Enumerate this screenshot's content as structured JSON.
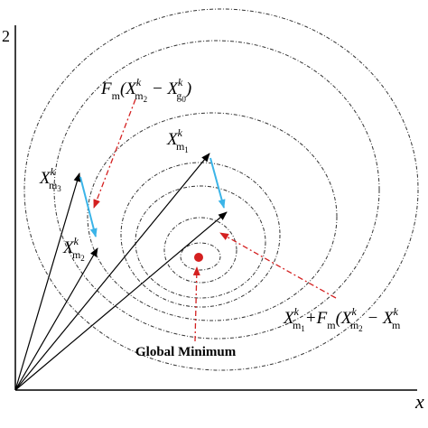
{
  "axes": {
    "y_label": "2",
    "x_label": "x"
  },
  "labels": [
    {
      "segments": [
        {
          "text": "F",
          "role": "base"
        },
        {
          "text": "m",
          "role": "sub"
        },
        {
          "text": "(X",
          "role": "base"
        },
        {
          "text": "k",
          "role": "sup"
        },
        {
          "text": "m",
          "role": "sub"
        },
        {
          "text": "2",
          "role": "subsub"
        },
        {
          "text": " − X",
          "role": "base"
        },
        {
          "text": "k",
          "role": "sup"
        },
        {
          "text": "g",
          "role": "sub"
        },
        {
          "text": "0",
          "role": "subsub"
        },
        {
          "text": ")",
          "role": "base"
        }
      ]
    },
    {
      "segments": [
        {
          "text": "X",
          "role": "base"
        },
        {
          "text": "k",
          "role": "sup"
        },
        {
          "text": "m",
          "role": "sub"
        },
        {
          "text": "1",
          "role": "subsub"
        }
      ]
    },
    {
      "segments": [
        {
          "text": "X",
          "role": "base"
        },
        {
          "text": "k",
          "role": "sup"
        },
        {
          "text": "m",
          "role": "sub"
        },
        {
          "text": "3",
          "role": "subsub"
        }
      ]
    },
    {
      "segments": [
        {
          "text": "X",
          "role": "base"
        },
        {
          "text": "k",
          "role": "sup"
        },
        {
          "text": "m",
          "role": "sub"
        },
        {
          "text": "2",
          "role": "subsub"
        }
      ]
    },
    {
      "segments": [
        {
          "text": "X",
          "role": "base"
        },
        {
          "text": "k",
          "role": "sup"
        },
        {
          "text": "m",
          "role": "sub"
        },
        {
          "text": "1",
          "role": "subsub"
        },
        {
          "text": "+F",
          "role": "base"
        },
        {
          "text": "m",
          "role": "sub"
        },
        {
          "text": "(X",
          "role": "base"
        },
        {
          "text": "k",
          "role": "sup"
        },
        {
          "text": "m",
          "role": "sub"
        },
        {
          "text": "2",
          "role": "subsub"
        },
        {
          "text": " − X",
          "role": "base"
        },
        {
          "text": "k",
          "role": "sup"
        },
        {
          "text": "m",
          "role": "sub"
        }
      ]
    }
  ],
  "global_minimum": "Global Minimum"
}
